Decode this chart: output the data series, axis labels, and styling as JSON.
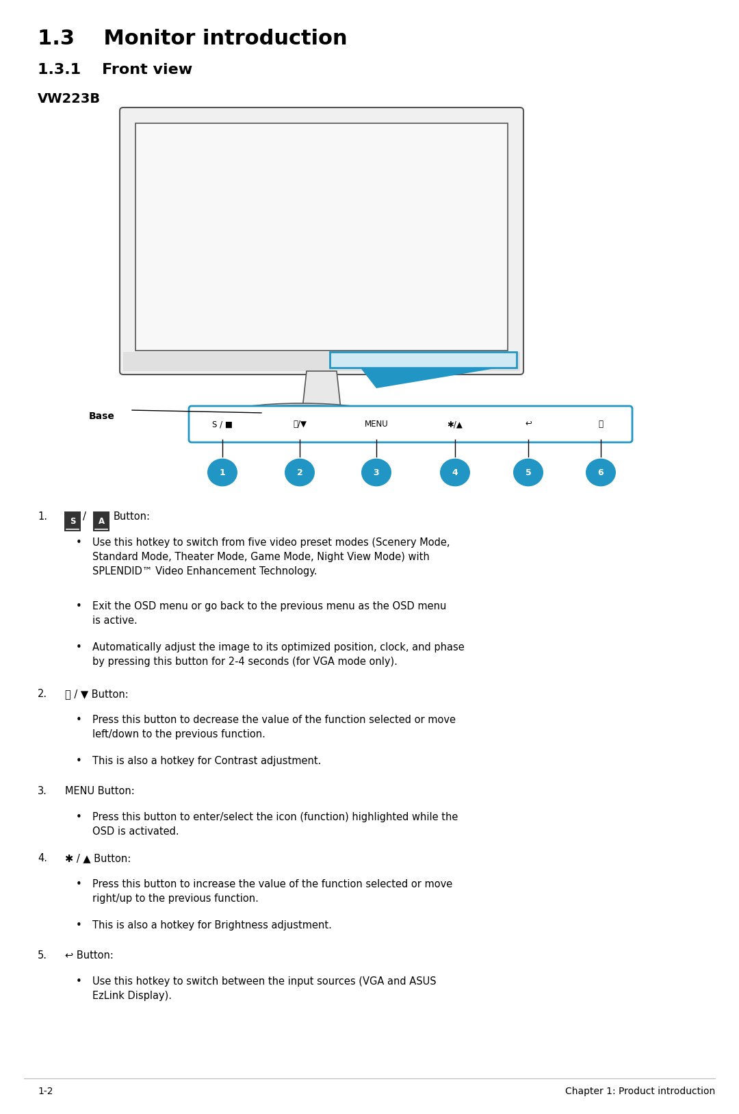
{
  "title": "1.3    Monitor introduction",
  "subtitle": "1.3.1    Front view",
  "model": "VW223B",
  "bg_color": "#ffffff",
  "title_fontsize": 22,
  "subtitle_fontsize": 16,
  "model_fontsize": 14,
  "body_fontsize": 11,
  "accent_color": "#2196C4",
  "button_numbers": [
    "1",
    "2",
    "3",
    "4",
    "5",
    "6"
  ],
  "base_label": "Base",
  "footer_left": "1-2",
  "footer_right": "Chapter 1: Product introduction"
}
